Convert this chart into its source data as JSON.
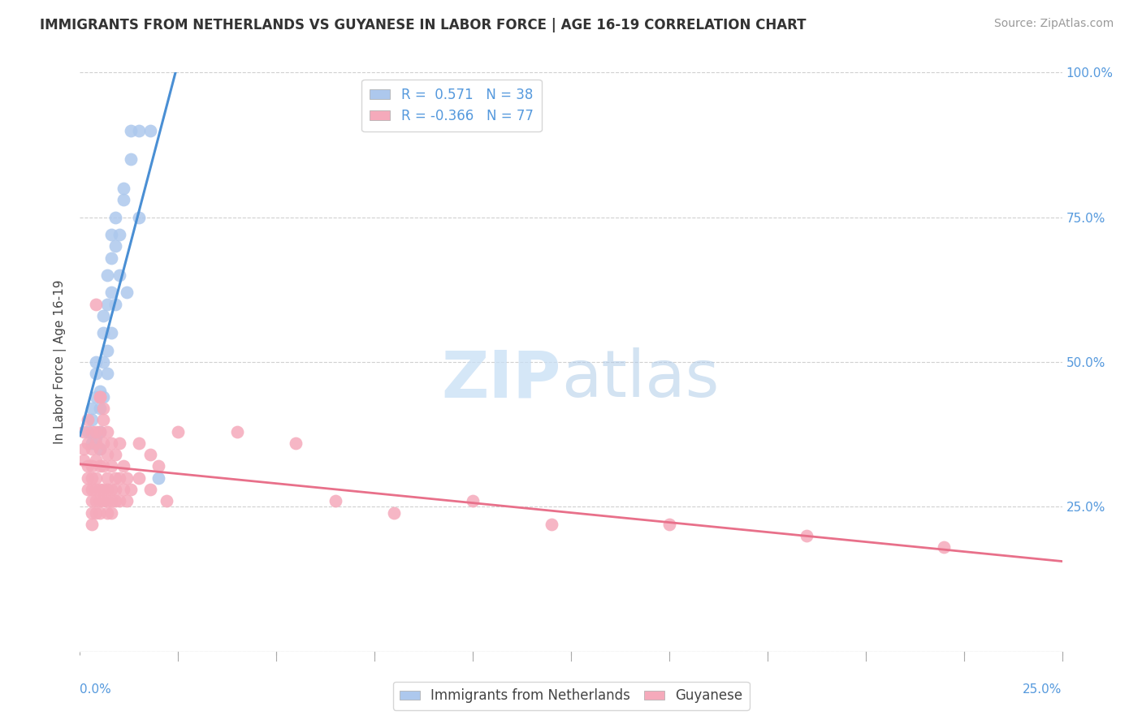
{
  "title": "IMMIGRANTS FROM NETHERLANDS VS GUYANESE IN LABOR FORCE | AGE 16-19 CORRELATION CHART",
  "source": "Source: ZipAtlas.com",
  "ylabel": "In Labor Force | Age 16-19",
  "r_netherlands": 0.571,
  "n_netherlands": 38,
  "r_guyanese": -0.366,
  "n_guyanese": 77,
  "legend_label_blue": "Immigrants from Netherlands",
  "legend_label_pink": "Guyanese",
  "watermark_zip": "ZIP",
  "watermark_atlas": "atlas",
  "blue_color": "#adc8ed",
  "blue_edge_color": "#adc8ed",
  "blue_line_color": "#4a8fd4",
  "pink_color": "#f5aabb",
  "pink_edge_color": "#f5aabb",
  "pink_line_color": "#e8708a",
  "blue_scatter": [
    [
      0.002,
      0.38
    ],
    [
      0.003,
      0.42
    ],
    [
      0.003,
      0.36
    ],
    [
      0.003,
      0.4
    ],
    [
      0.004,
      0.37
    ],
    [
      0.004,
      0.44
    ],
    [
      0.004,
      0.48
    ],
    [
      0.004,
      0.5
    ],
    [
      0.005,
      0.35
    ],
    [
      0.005,
      0.38
    ],
    [
      0.005,
      0.42
    ],
    [
      0.005,
      0.45
    ],
    [
      0.006,
      0.5
    ],
    [
      0.006,
      0.55
    ],
    [
      0.006,
      0.58
    ],
    [
      0.006,
      0.44
    ],
    [
      0.007,
      0.48
    ],
    [
      0.007,
      0.52
    ],
    [
      0.007,
      0.6
    ],
    [
      0.007,
      0.65
    ],
    [
      0.008,
      0.55
    ],
    [
      0.008,
      0.62
    ],
    [
      0.008,
      0.68
    ],
    [
      0.008,
      0.72
    ],
    [
      0.009,
      0.6
    ],
    [
      0.009,
      0.7
    ],
    [
      0.009,
      0.75
    ],
    [
      0.01,
      0.65
    ],
    [
      0.01,
      0.72
    ],
    [
      0.011,
      0.78
    ],
    [
      0.011,
      0.8
    ],
    [
      0.012,
      0.62
    ],
    [
      0.013,
      0.85
    ],
    [
      0.013,
      0.9
    ],
    [
      0.015,
      0.9
    ],
    [
      0.018,
      0.9
    ],
    [
      0.015,
      0.75
    ],
    [
      0.02,
      0.3
    ]
  ],
  "pink_scatter": [
    [
      0.001,
      0.38
    ],
    [
      0.001,
      0.35
    ],
    [
      0.001,
      0.33
    ],
    [
      0.002,
      0.4
    ],
    [
      0.002,
      0.36
    ],
    [
      0.002,
      0.32
    ],
    [
      0.002,
      0.3
    ],
    [
      0.002,
      0.28
    ],
    [
      0.003,
      0.38
    ],
    [
      0.003,
      0.35
    ],
    [
      0.003,
      0.32
    ],
    [
      0.003,
      0.3
    ],
    [
      0.003,
      0.28
    ],
    [
      0.003,
      0.26
    ],
    [
      0.003,
      0.24
    ],
    [
      0.003,
      0.22
    ],
    [
      0.004,
      0.36
    ],
    [
      0.004,
      0.33
    ],
    [
      0.004,
      0.3
    ],
    [
      0.004,
      0.28
    ],
    [
      0.004,
      0.26
    ],
    [
      0.004,
      0.24
    ],
    [
      0.004,
      0.38
    ],
    [
      0.004,
      0.6
    ],
    [
      0.005,
      0.44
    ],
    [
      0.005,
      0.44
    ],
    [
      0.005,
      0.38
    ],
    [
      0.005,
      0.35
    ],
    [
      0.005,
      0.32
    ],
    [
      0.005,
      0.28
    ],
    [
      0.005,
      0.26
    ],
    [
      0.005,
      0.24
    ],
    [
      0.006,
      0.42
    ],
    [
      0.006,
      0.4
    ],
    [
      0.006,
      0.36
    ],
    [
      0.006,
      0.32
    ],
    [
      0.006,
      0.28
    ],
    [
      0.006,
      0.26
    ],
    [
      0.007,
      0.38
    ],
    [
      0.007,
      0.34
    ],
    [
      0.007,
      0.3
    ],
    [
      0.007,
      0.28
    ],
    [
      0.007,
      0.26
    ],
    [
      0.007,
      0.24
    ],
    [
      0.008,
      0.36
    ],
    [
      0.008,
      0.32
    ],
    [
      0.008,
      0.28
    ],
    [
      0.008,
      0.26
    ],
    [
      0.008,
      0.24
    ],
    [
      0.009,
      0.34
    ],
    [
      0.009,
      0.3
    ],
    [
      0.009,
      0.28
    ],
    [
      0.009,
      0.26
    ],
    [
      0.01,
      0.36
    ],
    [
      0.01,
      0.3
    ],
    [
      0.01,
      0.26
    ],
    [
      0.011,
      0.32
    ],
    [
      0.011,
      0.28
    ],
    [
      0.012,
      0.3
    ],
    [
      0.012,
      0.26
    ],
    [
      0.013,
      0.28
    ],
    [
      0.015,
      0.36
    ],
    [
      0.015,
      0.3
    ],
    [
      0.018,
      0.34
    ],
    [
      0.018,
      0.28
    ],
    [
      0.02,
      0.32
    ],
    [
      0.022,
      0.26
    ],
    [
      0.025,
      0.38
    ],
    [
      0.04,
      0.38
    ],
    [
      0.055,
      0.36
    ],
    [
      0.065,
      0.26
    ],
    [
      0.08,
      0.24
    ],
    [
      0.1,
      0.26
    ],
    [
      0.12,
      0.22
    ],
    [
      0.15,
      0.22
    ],
    [
      0.185,
      0.2
    ],
    [
      0.22,
      0.18
    ]
  ],
  "xmin": 0.0,
  "xmax": 0.25,
  "ymin": 0.0,
  "ymax": 1.0,
  "yticks": [
    0.0,
    0.25,
    0.5,
    0.75,
    1.0
  ],
  "ytick_labels_right": [
    "",
    "25.0%",
    "50.0%",
    "75.0%",
    "100.0%"
  ],
  "xtick_positions": [
    0.0,
    0.025,
    0.05,
    0.075,
    0.1,
    0.125,
    0.15,
    0.175,
    0.2,
    0.225,
    0.25
  ],
  "grid_color": "#d0d0d0",
  "grid_linestyle": "--",
  "title_fontsize": 12,
  "source_fontsize": 10,
  "tick_fontsize": 11,
  "legend_fontsize": 12
}
